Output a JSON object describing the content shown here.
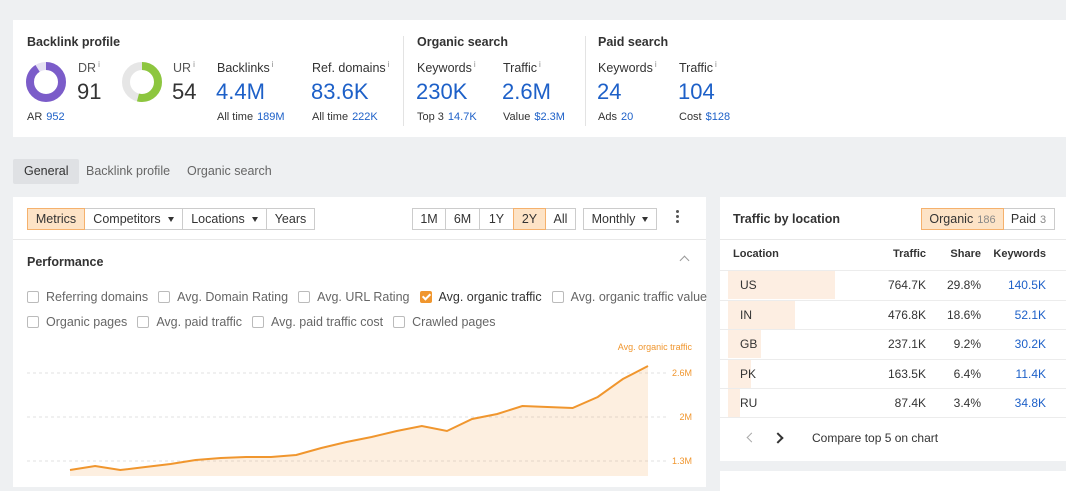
{
  "metrics": {
    "info_icon": "i",
    "backlink_profile": {
      "title": "Backlink profile",
      "dr": {
        "label": "DR",
        "value": 91
      },
      "ur": {
        "label": "UR",
        "value": 54
      },
      "ar": {
        "label": "AR",
        "value": "952"
      },
      "backlinks": {
        "label": "Backlinks",
        "value": "4.4M",
        "sub_label": "All time",
        "sub_value": "189M"
      },
      "ref_domains": {
        "label": "Ref. domains",
        "value": "83.6K",
        "sub_label": "All time",
        "sub_value": "222K"
      }
    },
    "organic_search": {
      "title": "Organic search",
      "keywords": {
        "label": "Keywords",
        "value": "230K",
        "sub_label": "Top 3",
        "sub_value": "14.7K"
      },
      "traffic": {
        "label": "Traffic",
        "value": "2.6M",
        "sub_label": "Value",
        "sub_value": "$2.3M"
      }
    },
    "paid_search": {
      "title": "Paid search",
      "keywords": {
        "label": "Keywords",
        "value": "24",
        "sub_label": "Ads",
        "sub_value": "20"
      },
      "traffic": {
        "label": "Traffic",
        "value": "104",
        "sub_label": "Cost",
        "sub_value": "$128"
      }
    }
  },
  "tabs": {
    "items": [
      "General",
      "Backlink profile",
      "Organic search"
    ],
    "active": 0
  },
  "toolbar": {
    "modes": [
      {
        "label": "Metrics",
        "dropdown": false
      },
      {
        "label": "Competitors",
        "dropdown": true
      },
      {
        "label": "Locations",
        "dropdown": true
      },
      {
        "label": "Years",
        "dropdown": false
      }
    ],
    "active_mode": 0,
    "ranges": [
      "1M",
      "6M",
      "1Y",
      "2Y",
      "All"
    ],
    "active_range": 3,
    "interval": "Monthly"
  },
  "performance": {
    "title": "Performance",
    "filters": [
      [
        {
          "label": "Referring domains",
          "checked": false
        },
        {
          "label": "Avg. Domain Rating",
          "checked": false
        },
        {
          "label": "Avg. URL Rating",
          "checked": false
        },
        {
          "label": "Avg. organic traffic",
          "checked": true
        },
        {
          "label": "Avg. organic traffic value",
          "checked": false
        }
      ],
      [
        {
          "label": "Organic pages",
          "checked": false
        },
        {
          "label": "Avg. paid traffic",
          "checked": false
        },
        {
          "label": "Avg. paid traffic cost",
          "checked": false
        },
        {
          "label": "Crawled pages",
          "checked": false
        }
      ]
    ]
  },
  "chart_data": {
    "type": "line",
    "series": [
      {
        "name": "Avg. organic traffic",
        "color": "#f0962e",
        "values": [
          1185000,
          1245000,
          1185000,
          1230000,
          1275000,
          1335000,
          1365000,
          1380000,
          1380000,
          1410000,
          1515000,
          1605000,
          1680000,
          1770000,
          1845000,
          1770000,
          1950000,
          2025000,
          2145000,
          2130000,
          2115000,
          2280000,
          2550000,
          2745000
        ]
      }
    ],
    "ylim": [
      1095000,
      2910000
    ],
    "yticks": [
      {
        "value": 1320000,
        "label": "1.3M"
      },
      {
        "value": 1980000,
        "label": "2M"
      },
      {
        "value": 2640000,
        "label": "2.6M"
      }
    ],
    "grid": true
  },
  "traffic_by_location": {
    "title": "Traffic by location",
    "toggles": [
      {
        "label": "Organic",
        "count": "186"
      },
      {
        "label": "Paid",
        "count": "3"
      }
    ],
    "active_toggle": 0,
    "columns": [
      "Location",
      "Traffic",
      "Share",
      "Keywords"
    ],
    "rows": [
      [
        "US",
        "764.7K",
        "29.8%",
        "140.5K"
      ],
      [
        "IN",
        "476.8K",
        "18.6%",
        "52.1K"
      ],
      [
        "GB",
        "237.1K",
        "9.2%",
        "30.2K"
      ],
      [
        "PK",
        "163.5K",
        "6.4%",
        "11.4K"
      ],
      [
        "RU",
        "87.4K",
        "3.4%",
        "34.8K"
      ]
    ],
    "footer": "Compare top 5 on chart"
  }
}
